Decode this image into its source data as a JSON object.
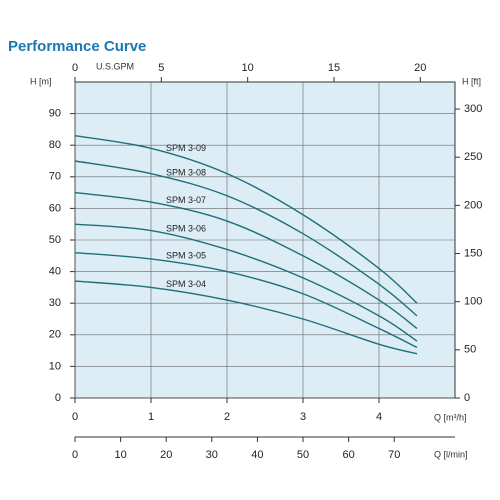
{
  "chart_data": {
    "type": "line",
    "title": "Performance Curve",
    "ylabel": "H [m]",
    "y2label": "H [ft]",
    "xlabel": "Q [m³/h]",
    "x": [
      0,
      1,
      2,
      3,
      4,
      4.5
    ],
    "series": [
      {
        "name": "SPM 3-09",
        "color": "#1f6f78",
        "values": [
          83,
          79,
          71,
          58,
          41,
          30
        ]
      },
      {
        "name": "SPM 3-08",
        "color": "#1f6f78",
        "values": [
          75,
          71,
          64,
          52,
          36,
          26
        ]
      },
      {
        "name": "SPM 3-07",
        "color": "#1f6f78",
        "values": [
          65,
          62,
          56,
          45,
          31,
          22
        ]
      },
      {
        "name": "SPM 3-06",
        "color": "#1f6f78",
        "values": [
          55,
          53,
          47,
          38,
          26,
          18
        ]
      },
      {
        "name": "SPM 3-05",
        "color": "#1f6f78",
        "values": [
          46,
          44,
          40,
          33,
          22,
          16
        ]
      },
      {
        "name": "SPM 3-04",
        "color": "#1f6f78",
        "values": [
          37,
          35,
          31,
          25,
          17,
          14
        ]
      }
    ],
    "xlim": [
      0,
      5
    ],
    "xticks": [
      0,
      1,
      2,
      3,
      4
    ],
    "ylim": [
      0,
      100
    ],
    "yticks": [
      0,
      10,
      20,
      30,
      40,
      50,
      60,
      70,
      80,
      90
    ],
    "y2lim": [
      0,
      328.08
    ],
    "y2ticks": [
      0,
      50,
      100,
      150,
      200,
      250,
      300
    ],
    "top_axis": {
      "label": "U.S.GPM",
      "lim": [
        0,
        22.01
      ],
      "ticks": [
        0,
        5,
        10,
        15,
        20
      ]
    },
    "bottom_axis2": {
      "label": "Q [l/min]",
      "lim": [
        0,
        83.33
      ],
      "ticks": [
        0,
        10,
        20,
        30,
        40,
        50,
        60,
        70
      ]
    },
    "grid": true,
    "background": "#dcedf6"
  }
}
